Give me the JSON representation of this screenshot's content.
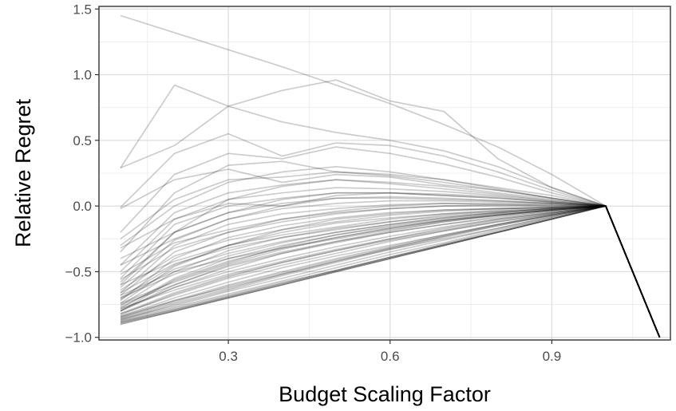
{
  "chart_data": {
    "type": "line",
    "title": "",
    "xlabel": "Budget Scaling Factor",
    "ylabel": "Relative Regret",
    "xlim": [
      0.06,
      1.12
    ],
    "ylim": [
      -1.02,
      1.52
    ],
    "x_ticks": [
      {
        "value": 0.3,
        "label": "0.3"
      },
      {
        "value": 0.6,
        "label": "0.6"
      },
      {
        "value": 0.9,
        "label": "0.9"
      }
    ],
    "y_ticks": [
      {
        "value": -1.0,
        "label": "−1.0"
      },
      {
        "value": -0.5,
        "label": "−0.5"
      },
      {
        "value": 0.0,
        "label": "0.0"
      },
      {
        "value": 0.5,
        "label": "0.5"
      },
      {
        "value": 1.0,
        "label": "1.0"
      },
      {
        "value": 1.5,
        "label": "1.5"
      }
    ],
    "x": [
      0.1,
      0.2,
      0.3,
      0.4,
      0.5,
      0.6,
      0.7,
      0.8,
      0.9,
      1.0,
      1.1
    ],
    "grid": true,
    "line_color": "#000000",
    "line_opacity": 0.2,
    "series": [
      {
        "values": [
          1.45,
          1.32,
          1.19,
          1.06,
          0.92,
          0.78,
          0.62,
          0.45,
          0.24,
          0.0,
          -1.0
        ]
      },
      {
        "values": [
          0.29,
          0.92,
          0.76,
          0.88,
          0.96,
          0.8,
          0.72,
          0.36,
          0.14,
          0.0,
          -1.0
        ]
      },
      {
        "values": [
          0.29,
          0.46,
          0.76,
          0.64,
          0.56,
          0.5,
          0.42,
          0.3,
          0.14,
          0.0,
          -1.0
        ]
      },
      {
        "values": [
          -0.01,
          0.4,
          0.55,
          0.38,
          0.48,
          0.46,
          0.38,
          0.26,
          0.12,
          0.0,
          -1.0
        ]
      },
      {
        "values": [
          -0.2,
          0.24,
          0.4,
          0.36,
          0.45,
          0.4,
          0.32,
          0.22,
          0.1,
          0.0,
          -1.0
        ]
      },
      {
        "values": [
          -0.35,
          0.1,
          0.31,
          0.34,
          0.26,
          0.24,
          0.2,
          0.14,
          0.08,
          0.0,
          -1.0
        ]
      },
      {
        "values": [
          -0.02,
          0.2,
          0.28,
          0.18,
          0.24,
          0.22,
          0.16,
          0.12,
          0.06,
          0.0,
          -1.0
        ]
      },
      {
        "values": [
          -0.45,
          -0.05,
          0.1,
          0.16,
          0.2,
          0.18,
          0.15,
          0.1,
          0.05,
          0.0,
          -1.0
        ]
      },
      {
        "values": [
          -0.6,
          -0.2,
          -0.05,
          0.05,
          0.1,
          0.1,
          0.08,
          0.06,
          0.03,
          0.0,
          -1.0
        ]
      },
      {
        "values": [
          -0.32,
          -0.1,
          0.02,
          0.0,
          0.06,
          0.06,
          0.05,
          0.04,
          0.02,
          0.0,
          -1.0
        ]
      },
      {
        "values": [
          -0.7,
          -0.45,
          -0.3,
          -0.18,
          -0.1,
          -0.06,
          -0.03,
          -0.02,
          -0.01,
          0.0,
          -1.0
        ]
      },
      {
        "values": [
          -0.8,
          -0.62,
          -0.48,
          -0.36,
          -0.27,
          -0.19,
          -0.12,
          -0.07,
          -0.03,
          0.0,
          -1.0
        ]
      },
      {
        "values": [
          -0.85,
          -0.72,
          -0.62,
          -0.52,
          -0.42,
          -0.32,
          -0.23,
          -0.14,
          -0.06,
          0.0,
          -1.0
        ]
      },
      {
        "values": [
          -0.88,
          -0.78,
          -0.68,
          -0.58,
          -0.49,
          -0.39,
          -0.29,
          -0.19,
          -0.09,
          0.0,
          -1.0
        ]
      },
      {
        "values": [
          -0.89,
          -0.79,
          -0.69,
          -0.59,
          -0.49,
          -0.39,
          -0.3,
          -0.2,
          -0.1,
          0.0,
          -1.0
        ]
      },
      {
        "values": [
          -0.9,
          -0.8,
          -0.7,
          -0.6,
          -0.5,
          -0.4,
          -0.3,
          -0.2,
          -0.1,
          0.0,
          -1.0
        ]
      },
      {
        "values": [
          -0.9,
          -0.8,
          -0.7,
          -0.6,
          -0.5,
          -0.4,
          -0.3,
          -0.2,
          -0.1,
          0.0,
          -1.0
        ]
      },
      {
        "values": [
          -0.89,
          -0.8,
          -0.7,
          -0.6,
          -0.5,
          -0.4,
          -0.3,
          -0.2,
          -0.1,
          0.0,
          -1.0
        ]
      },
      {
        "values": [
          -0.88,
          -0.79,
          -0.69,
          -0.59,
          -0.49,
          -0.39,
          -0.29,
          -0.2,
          -0.1,
          0.0,
          -1.0
        ]
      },
      {
        "values": [
          -0.87,
          -0.77,
          -0.67,
          -0.57,
          -0.47,
          -0.37,
          -0.28,
          -0.18,
          -0.09,
          0.0,
          -1.0
        ]
      },
      {
        "values": [
          -0.86,
          -0.74,
          -0.63,
          -0.52,
          -0.42,
          -0.33,
          -0.25,
          -0.17,
          -0.08,
          0.0,
          -1.0
        ]
      },
      {
        "values": [
          -0.84,
          -0.7,
          -0.58,
          -0.47,
          -0.38,
          -0.3,
          -0.22,
          -0.14,
          -0.07,
          0.0,
          -1.0
        ]
      },
      {
        "values": [
          -0.82,
          -0.66,
          -0.53,
          -0.43,
          -0.34,
          -0.26,
          -0.19,
          -0.12,
          -0.06,
          0.0,
          -1.0
        ]
      },
      {
        "values": [
          -0.8,
          -0.6,
          -0.45,
          -0.35,
          -0.27,
          -0.2,
          -0.14,
          -0.09,
          -0.04,
          0.0,
          -1.0
        ]
      },
      {
        "values": [
          -0.78,
          -0.55,
          -0.4,
          -0.3,
          -0.22,
          -0.16,
          -0.11,
          -0.07,
          -0.03,
          0.0,
          -1.0
        ]
      },
      {
        "values": [
          -0.76,
          -0.5,
          -0.34,
          -0.24,
          -0.17,
          -0.12,
          -0.08,
          -0.05,
          -0.02,
          0.0,
          -1.0
        ]
      },
      {
        "values": [
          -0.74,
          -0.46,
          -0.3,
          -0.2,
          -0.13,
          -0.09,
          -0.06,
          -0.04,
          -0.02,
          0.0,
          -1.0
        ]
      },
      {
        "values": [
          -0.72,
          -0.4,
          -0.24,
          -0.15,
          -0.09,
          -0.05,
          -0.03,
          -0.02,
          -0.01,
          0.0,
          -1.0
        ]
      },
      {
        "values": [
          -0.68,
          -0.35,
          -0.2,
          -0.1,
          -0.05,
          -0.02,
          0.0,
          0.0,
          0.0,
          0.0,
          -1.0
        ]
      },
      {
        "values": [
          -0.66,
          -0.3,
          -0.14,
          -0.06,
          -0.02,
          0.01,
          0.02,
          0.01,
          0.01,
          0.0,
          -1.0
        ]
      },
      {
        "values": [
          -0.62,
          -0.26,
          -0.1,
          -0.02,
          0.02,
          0.04,
          0.04,
          0.03,
          0.02,
          0.0,
          -1.0
        ]
      },
      {
        "values": [
          -0.58,
          -0.2,
          -0.05,
          0.02,
          0.06,
          0.07,
          0.06,
          0.04,
          0.02,
          0.0,
          -1.0
        ]
      },
      {
        "values": [
          -0.55,
          -0.14,
          0.0,
          0.06,
          0.1,
          0.1,
          0.08,
          0.06,
          0.03,
          0.0,
          -1.0
        ]
      },
      {
        "values": [
          -0.5,
          -0.1,
          0.05,
          0.1,
          0.14,
          0.13,
          0.11,
          0.08,
          0.04,
          0.0,
          -1.0
        ]
      },
      {
        "values": [
          -0.52,
          -0.28,
          -0.18,
          -0.1,
          -0.04,
          0.0,
          0.02,
          0.02,
          0.01,
          0.0,
          -1.0
        ]
      },
      {
        "values": [
          -0.64,
          -0.38,
          -0.26,
          -0.18,
          -0.12,
          -0.07,
          -0.04,
          -0.02,
          -0.01,
          0.0,
          -1.0
        ]
      },
      {
        "values": [
          -0.7,
          -0.52,
          -0.38,
          -0.28,
          -0.2,
          -0.14,
          -0.09,
          -0.05,
          -0.02,
          0.0,
          -1.0
        ]
      },
      {
        "values": [
          -0.75,
          -0.6,
          -0.46,
          -0.36,
          -0.28,
          -0.2,
          -0.14,
          -0.08,
          -0.04,
          0.0,
          -1.0
        ]
      },
      {
        "values": [
          -0.82,
          -0.68,
          -0.55,
          -0.45,
          -0.36,
          -0.27,
          -0.19,
          -0.12,
          -0.06,
          0.0,
          -1.0
        ]
      },
      {
        "values": [
          -0.86,
          -0.76,
          -0.65,
          -0.55,
          -0.45,
          -0.35,
          -0.26,
          -0.17,
          -0.08,
          0.0,
          -1.0
        ]
      },
      {
        "values": [
          -0.4,
          -0.2,
          0.05,
          0.15,
          0.2,
          0.17,
          0.13,
          0.09,
          0.04,
          0.0,
          -1.0
        ]
      },
      {
        "values": [
          -0.3,
          0.0,
          0.18,
          0.26,
          0.3,
          0.26,
          0.2,
          0.13,
          0.06,
          0.0,
          -1.0
        ]
      },
      {
        "values": [
          -0.25,
          0.05,
          0.2,
          0.22,
          0.26,
          0.23,
          0.18,
          0.12,
          0.06,
          0.0,
          -1.0
        ]
      },
      {
        "values": [
          -0.45,
          -0.25,
          -0.1,
          0.0,
          0.08,
          0.1,
          0.09,
          0.07,
          0.03,
          0.0,
          -1.0
        ]
      },
      {
        "values": [
          -0.6,
          -0.42,
          -0.3,
          -0.22,
          -0.16,
          -0.1,
          -0.06,
          -0.03,
          -0.01,
          0.0,
          -1.0
        ]
      },
      {
        "values": [
          -0.68,
          -0.5,
          -0.4,
          -0.32,
          -0.25,
          -0.18,
          -0.12,
          -0.07,
          -0.03,
          0.0,
          -1.0
        ]
      },
      {
        "values": [
          -0.78,
          -0.64,
          -0.52,
          -0.42,
          -0.33,
          -0.25,
          -0.18,
          -0.11,
          -0.05,
          0.0,
          -1.0
        ]
      },
      {
        "values": [
          -0.84,
          -0.72,
          -0.6,
          -0.5,
          -0.4,
          -0.31,
          -0.22,
          -0.14,
          -0.07,
          0.0,
          -1.0
        ]
      },
      {
        "values": [
          -0.8,
          -0.56,
          -0.42,
          -0.32,
          -0.24,
          -0.17,
          -0.11,
          -0.07,
          -0.03,
          0.0,
          -1.0
        ]
      },
      {
        "values": [
          -0.66,
          -0.44,
          -0.32,
          -0.24,
          -0.18,
          -0.12,
          -0.07,
          -0.04,
          -0.02,
          0.0,
          -1.0
        ]
      },
      {
        "values": [
          -0.56,
          -0.32,
          -0.2,
          -0.12,
          -0.06,
          -0.02,
          0.0,
          0.01,
          0.0,
          0.0,
          -1.0
        ]
      },
      {
        "values": [
          -0.74,
          -0.58,
          -0.44,
          -0.33,
          -0.24,
          -0.17,
          -0.11,
          -0.06,
          -0.03,
          0.0,
          -1.0
        ]
      },
      {
        "values": [
          -0.87,
          -0.75,
          -0.64,
          -0.53,
          -0.43,
          -0.33,
          -0.24,
          -0.15,
          -0.07,
          0.0,
          -1.0
        ]
      },
      {
        "values": [
          -0.83,
          -0.67,
          -0.54,
          -0.43,
          -0.34,
          -0.25,
          -0.17,
          -0.1,
          -0.05,
          0.0,
          -1.0
        ]
      },
      {
        "values": [
          -0.77,
          -0.57,
          -0.43,
          -0.31,
          -0.22,
          -0.15,
          -0.1,
          -0.06,
          -0.03,
          0.0,
          -1.0
        ]
      },
      {
        "values": [
          -0.79,
          -0.62,
          -0.5,
          -0.4,
          -0.31,
          -0.23,
          -0.16,
          -0.1,
          -0.05,
          0.0,
          -1.0
        ]
      },
      {
        "values": [
          -0.71,
          -0.48,
          -0.36,
          -0.27,
          -0.2,
          -0.14,
          -0.09,
          -0.05,
          -0.02,
          0.0,
          -1.0
        ]
      },
      {
        "values": [
          -0.85,
          -0.73,
          -0.61,
          -0.51,
          -0.41,
          -0.32,
          -0.23,
          -0.15,
          -0.07,
          0.0,
          -1.0
        ]
      }
    ]
  }
}
